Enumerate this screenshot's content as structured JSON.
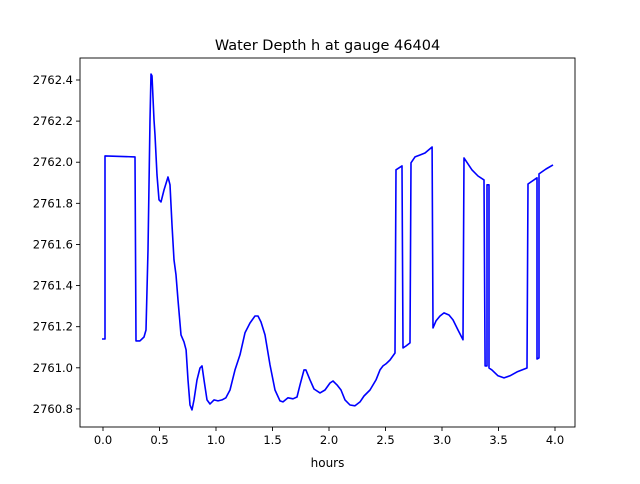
{
  "chart_data": {
    "type": "line",
    "title": "Water Depth h at gauge 46404",
    "xlabel": "hours",
    "ylabel": "",
    "xlim": [
      -0.2035,
      4.177
    ],
    "ylim": [
      2760.712,
      2762.507
    ],
    "grid": false,
    "xticks": [
      0.0,
      0.5,
      1.0,
      1.5,
      2.0,
      2.5,
      3.0,
      3.5,
      4.0
    ],
    "xtick_labels": [
      "0.0",
      "0.5",
      "1.0",
      "1.5",
      "2.0",
      "2.5",
      "3.0",
      "3.5",
      "4.0"
    ],
    "yticks": [
      2760.8,
      2761.0,
      2761.2,
      2761.4,
      2761.6,
      2761.8,
      2762.0,
      2762.2,
      2762.4
    ],
    "ytick_labels": [
      "2760.8",
      "2761.0",
      "2761.2",
      "2761.4",
      "2761.6",
      "2761.8",
      "2762.0",
      "2762.2",
      "2762.4"
    ],
    "series": [
      {
        "name": "h",
        "color": "#0000ff",
        "x": [
          -0.009,
          0.018,
          0.018,
          0.283,
          0.292,
          0.327,
          0.363,
          0.381,
          0.398,
          0.416,
          0.425,
          0.434,
          0.451,
          0.46,
          0.478,
          0.496,
          0.513,
          0.54,
          0.575,
          0.593,
          0.611,
          0.628,
          0.646,
          0.664,
          0.69,
          0.717,
          0.735,
          0.752,
          0.77,
          0.788,
          0.805,
          0.832,
          0.858,
          0.876,
          0.894,
          0.92,
          0.947,
          0.982,
          1.018,
          1.053,
          1.088,
          1.124,
          1.168,
          1.212,
          1.257,
          1.301,
          1.345,
          1.372,
          1.398,
          1.434,
          1.478,
          1.522,
          1.566,
          1.593,
          1.637,
          1.681,
          1.717,
          1.743,
          1.779,
          1.796,
          1.832,
          1.867,
          1.92,
          1.965,
          2.009,
          2.035,
          2.071,
          2.106,
          2.142,
          2.186,
          2.23,
          2.274,
          2.31,
          2.363,
          2.416,
          2.451,
          2.478,
          2.504,
          2.54,
          2.584,
          2.593,
          2.646,
          2.655,
          2.681,
          2.717,
          2.726,
          2.761,
          2.805,
          2.85,
          2.912,
          2.92,
          2.947,
          2.982,
          3.018,
          3.062,
          3.097,
          3.142,
          3.186,
          3.195,
          3.23,
          3.265,
          3.319,
          3.372,
          3.381,
          3.398,
          3.398,
          3.416,
          3.416,
          3.442,
          3.496,
          3.549,
          3.602,
          3.664,
          3.752,
          3.761,
          3.841,
          3.841,
          3.858,
          3.858,
          3.92,
          3.982
        ],
        "y": [
          2761.14,
          2761.14,
          2762.031,
          2762.026,
          2761.131,
          2761.131,
          2761.15,
          2761.184,
          2761.573,
          2762.206,
          2762.429,
          2762.42,
          2762.206,
          2762.133,
          2761.938,
          2761.817,
          2761.807,
          2761.865,
          2761.928,
          2761.89,
          2761.695,
          2761.525,
          2761.452,
          2761.33,
          2761.16,
          2761.126,
          2761.087,
          2760.941,
          2760.819,
          2760.795,
          2760.844,
          2760.941,
          2760.999,
          2761.009,
          2760.941,
          2760.844,
          2760.824,
          2760.844,
          2760.839,
          2760.844,
          2760.854,
          2760.892,
          2760.99,
          2761.063,
          2761.17,
          2761.218,
          2761.252,
          2761.252,
          2761.223,
          2761.16,
          2761.014,
          2760.892,
          2760.839,
          2760.834,
          2760.854,
          2760.849,
          2760.858,
          2760.917,
          2760.99,
          2760.99,
          2760.941,
          2760.897,
          2760.878,
          2760.892,
          2760.926,
          2760.936,
          2760.917,
          2760.892,
          2760.844,
          2760.819,
          2760.815,
          2760.834,
          2760.863,
          2760.892,
          2760.941,
          2760.99,
          2761.009,
          2761.019,
          2761.038,
          2761.072,
          2761.963,
          2761.982,
          2761.097,
          2761.106,
          2761.121,
          2761.997,
          2762.026,
          2762.035,
          2762.045,
          2762.074,
          2761.194,
          2761.228,
          2761.252,
          2761.267,
          2761.257,
          2761.233,
          2761.184,
          2761.136,
          2762.021,
          2761.992,
          2761.963,
          2761.933,
          2761.914,
          2761.009,
          2761.009,
          2761.89,
          2761.89,
          2760.999,
          2760.99,
          2760.961,
          2760.951,
          2760.961,
          2760.98,
          2760.999,
          2761.894,
          2761.924,
          2761.043,
          2761.048,
          2761.943,
          2761.967,
          2761.987
        ]
      }
    ]
  }
}
